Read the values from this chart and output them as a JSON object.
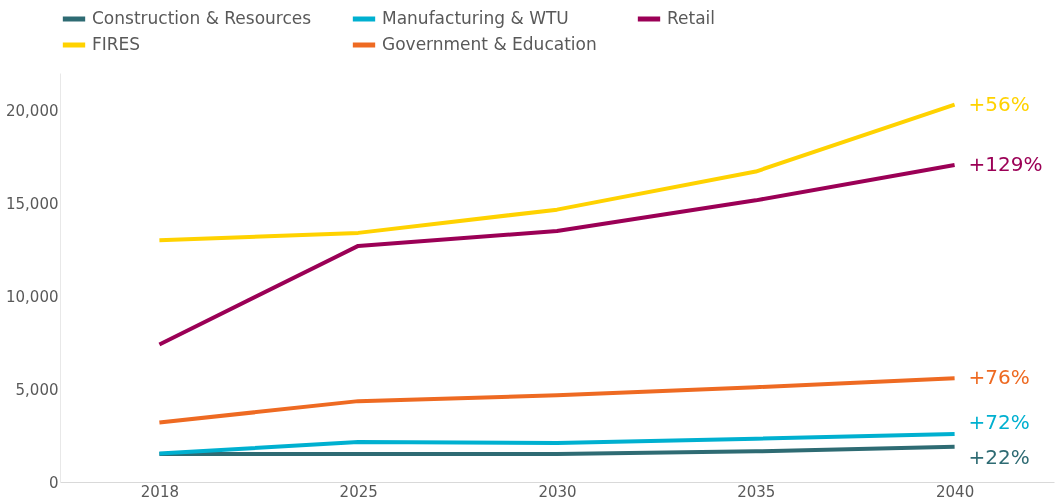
{
  "chart_data": {
    "type": "line",
    "categories": [
      "2018",
      "2025",
      "2030",
      "2035",
      "2040"
    ],
    "series": [
      {
        "name": "Construction & Resources",
        "color": "#2e6b73",
        "values": [
          1500,
          1500,
          1500,
          1650,
          1900
        ]
      },
      {
        "name": "Manufacturing & WTU",
        "color": "#00b0d0",
        "values": [
          1530,
          2150,
          2100,
          2330,
          2580
        ]
      },
      {
        "name": "Retail",
        "color": "#9b0056",
        "values": [
          7400,
          12700,
          13500,
          15150,
          17050
        ]
      },
      {
        "name": "FIRES",
        "color": "#ffd200",
        "values": [
          13000,
          13400,
          14650,
          16700,
          20300
        ]
      },
      {
        "name": "Government & Education",
        "color": "#ee6a22",
        "values": [
          3200,
          4350,
          4660,
          5100,
          5580
        ]
      }
    ],
    "annotations": [
      {
        "text": "+22%",
        "x": "2040",
        "y": 1900
      },
      {
        "text": "+72%",
        "x": "2040",
        "y": 2580
      },
      {
        "text": "+129%",
        "x": "2040",
        "y": 17050
      },
      {
        "text": "+56%",
        "x": "2040",
        "y": 20300
      },
      {
        "text": "+76%",
        "x": "2040",
        "y": 5580
      }
    ],
    "ylim": [
      0,
      22000
    ],
    "yticks": [
      0,
      {
        "value": 5000,
        "label": "5,000"
      },
      {
        "value": 10000,
        "label": "10,000"
      },
      {
        "value": 15000,
        "label": "15,000"
      },
      {
        "value": 20000,
        "label": "20,000"
      }
    ],
    "grid": false,
    "legend": "top",
    "marker": "none",
    "line_style": "solid"
  }
}
